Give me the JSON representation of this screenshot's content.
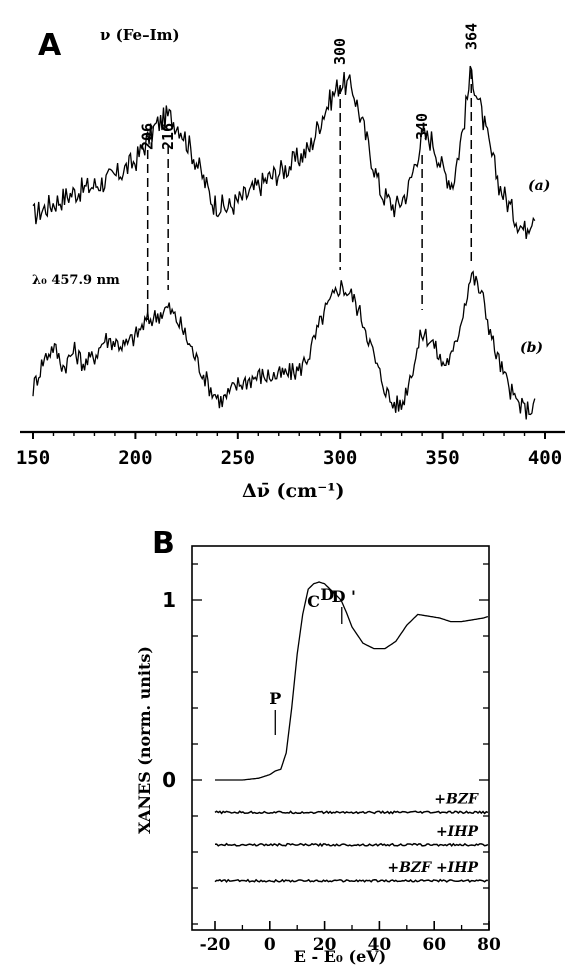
{
  "chart_data": [
    {
      "panel_label": "A",
      "type": "line",
      "title": "ν (Fe–Im)",
      "xlabel": "Δν̄ (cm⁻¹)",
      "x_ticks": [
        150,
        200,
        250,
        300,
        350,
        400
      ],
      "xlim": [
        150,
        400
      ],
      "wavelength_label": "λ₀ 457.9 nm",
      "peak_labels": [
        {
          "value": 206,
          "label": "206"
        },
        {
          "value": 216,
          "label": "216"
        },
        {
          "value": 300,
          "label": "300"
        },
        {
          "value": 340,
          "label": "340"
        },
        {
          "value": 364,
          "label": "364"
        }
      ],
      "series": [
        {
          "name": "(a)",
          "x": [
            150,
            160,
            170,
            180,
            190,
            200,
            206,
            210,
            216,
            222,
            230,
            238,
            245,
            255,
            265,
            275,
            285,
            292,
            300,
            306,
            312,
            320,
            327,
            333,
            340,
            345,
            350,
            355,
            360,
            364,
            368,
            373,
            378,
            385,
            390,
            395
          ],
          "y": [
            0.17,
            0.24,
            0.3,
            0.34,
            0.39,
            0.48,
            0.6,
            0.68,
            0.74,
            0.67,
            0.47,
            0.24,
            0.21,
            0.29,
            0.38,
            0.45,
            0.55,
            0.76,
            0.93,
            0.9,
            0.64,
            0.3,
            0.21,
            0.31,
            0.62,
            0.6,
            0.43,
            0.35,
            0.67,
            1.0,
            0.8,
            0.55,
            0.33,
            0.17,
            0.08,
            0.2
          ]
        },
        {
          "name": "(b)",
          "x": [
            150,
            155,
            160,
            165,
            170,
            175,
            180,
            185,
            190,
            195,
            200,
            205,
            210,
            216,
            222,
            230,
            237,
            242,
            250,
            260,
            270,
            280,
            285,
            292,
            300,
            306,
            312,
            318,
            325,
            330,
            335,
            340,
            345,
            350,
            355,
            360,
            364,
            369,
            375,
            380,
            385,
            390,
            395
          ],
          "y": [
            0.15,
            0.35,
            0.45,
            0.3,
            0.42,
            0.32,
            0.38,
            0.5,
            0.48,
            0.45,
            0.52,
            0.62,
            0.66,
            0.72,
            0.6,
            0.35,
            0.14,
            0.06,
            0.18,
            0.24,
            0.24,
            0.28,
            0.4,
            0.68,
            0.88,
            0.8,
            0.6,
            0.3,
            0.05,
            0.03,
            0.28,
            0.55,
            0.48,
            0.32,
            0.38,
            0.7,
            0.96,
            0.82,
            0.45,
            0.24,
            0.08,
            0.0,
            0.02
          ]
        }
      ]
    },
    {
      "panel_label": "B",
      "type": "line",
      "xlabel": "E - E₀ (eV)",
      "ylabel": "XANES (norm. units)",
      "x_ticks": [
        -20,
        0,
        20,
        40,
        60,
        80
      ],
      "y_ticks": [
        0,
        1
      ],
      "xlim": [
        -20,
        80
      ],
      "ylim": [
        -0.8,
        1.4
      ],
      "feature_labels": [
        {
          "label": "P",
          "x": 2
        },
        {
          "label": "C",
          "x": 16
        },
        {
          "label": "D",
          "x": 21
        },
        {
          "label": "D '",
          "x": 27
        }
      ],
      "series": [
        {
          "name": "XANES",
          "x": [
            -20,
            -10,
            -4,
            0,
            2,
            4,
            6,
            8,
            10,
            12,
            14,
            16,
            18,
            20,
            22,
            24,
            26,
            28,
            30,
            34,
            38,
            42,
            46,
            50,
            54,
            58,
            62,
            66,
            70,
            74,
            78,
            80
          ],
          "y": [
            0.0,
            0.0,
            0.01,
            0.03,
            0.05,
            0.06,
            0.15,
            0.4,
            0.7,
            0.92,
            1.06,
            1.09,
            1.1,
            1.09,
            1.06,
            1.03,
            1.0,
            0.93,
            0.85,
            0.76,
            0.73,
            0.73,
            0.77,
            0.86,
            0.92,
            0.91,
            0.9,
            0.88,
            0.88,
            0.89,
            0.9,
            0.91
          ]
        },
        {
          "name": "+BZF",
          "x": [
            -20,
            80
          ],
          "y": [
            -0.18,
            -0.18
          ]
        },
        {
          "name": "+IHP",
          "x": [
            -20,
            80
          ],
          "y": [
            -0.36,
            -0.36
          ]
        },
        {
          "name": "+BZF +IHP",
          "x": [
            -20,
            80
          ],
          "y": [
            -0.56,
            -0.56
          ]
        }
      ]
    }
  ]
}
